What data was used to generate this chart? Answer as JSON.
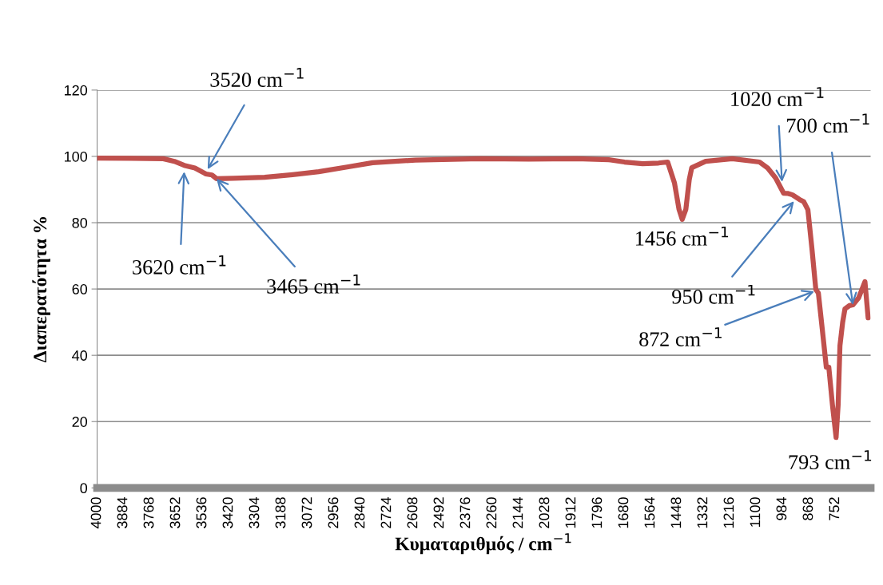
{
  "chart_data": {
    "type": "line",
    "xlabel": "Κυματαριθμός / cm$^{−1}$",
    "ylabel": "Διαπερατότητα %",
    "series": [
      {
        "color": "#c0504d",
        "x": [
          4000,
          3850,
          3709,
          3660,
          3617,
          3570,
          3521,
          3495,
          3475,
          3400,
          3263,
          3140,
          3025,
          2900,
          2788,
          2600,
          2316,
          2100,
          1890,
          1750,
          1680,
          1600,
          1530,
          1490,
          1460,
          1440,
          1426,
          1410,
          1395,
          1384,
          1323,
          1206,
          1086,
          1050,
          1015,
          980,
          960,
          941,
          910,
          891,
          873,
          855,
          838,
          827,
          810,
          792,
          781,
          765,
          749,
          740,
          732,
          720,
          710,
          690,
          675,
          650,
          622,
          608
        ],
        "values": [
          99.5,
          99.4,
          99.3,
          98.5,
          97.3,
          96.5,
          94.7,
          94.4,
          93.3,
          93.4,
          93.7,
          94.5,
          95.4,
          96.8,
          98.1,
          98.9,
          99.3,
          99.2,
          99.3,
          99,
          98.3,
          97.8,
          98,
          98.3,
          92,
          84,
          81,
          84,
          93,
          96.6,
          98.5,
          99.3,
          98.3,
          96.5,
          93.5,
          88.9,
          88.8,
          88.4,
          87,
          86.3,
          83.9,
          72,
          59.8,
          58.8,
          48,
          36.4,
          36.4,
          25,
          15.2,
          25,
          42.9,
          50,
          54,
          55,
          55.2,
          57.3,
          62.2,
          51.3
        ]
      }
    ],
    "xlim": [
      4000,
      597
    ],
    "xticks": [
      4000,
      3884,
      3768,
      3652,
      3536,
      3420,
      3304,
      3188,
      3072,
      2956,
      2840,
      2724,
      2608,
      2492,
      2376,
      2260,
      2144,
      2028,
      1912,
      1796,
      1680,
      1564,
      1448,
      1332,
      1216,
      1100,
      984,
      868,
      752
    ],
    "ylim": [
      0,
      120
    ],
    "yticks": [
      0,
      20,
      40,
      60,
      80,
      100,
      120
    ],
    "grid": "y",
    "marker": "none",
    "line_style": "solid",
    "annotations": [
      {
        "text": "3520 cm$^{−1}$",
        "x": 3514,
        "y": 96.1
      },
      {
        "text": "3620 cm$^{−1}$",
        "x": 3617,
        "y": 95.4
      },
      {
        "text": "3465 cm$^{−1}$",
        "x": 3475,
        "y": 93.3
      },
      {
        "text": "1456 cm$^{−1}$",
        "x": 1426,
        "y": 81
      },
      {
        "text": "1020 cm$^{−1}$",
        "x": 987,
        "y": 92.3
      },
      {
        "text": "700 cm$^{−1}$",
        "x": 675,
        "y": 55.2
      },
      {
        "text": "950 cm$^{−1}$",
        "x": 934,
        "y": 86.5
      },
      {
        "text": "872 cm$^{−1}$",
        "x": 845,
        "y": 59.3
      },
      {
        "text": "793 cm$^{−1}$",
        "x": 749,
        "y": 15.2
      }
    ]
  }
}
